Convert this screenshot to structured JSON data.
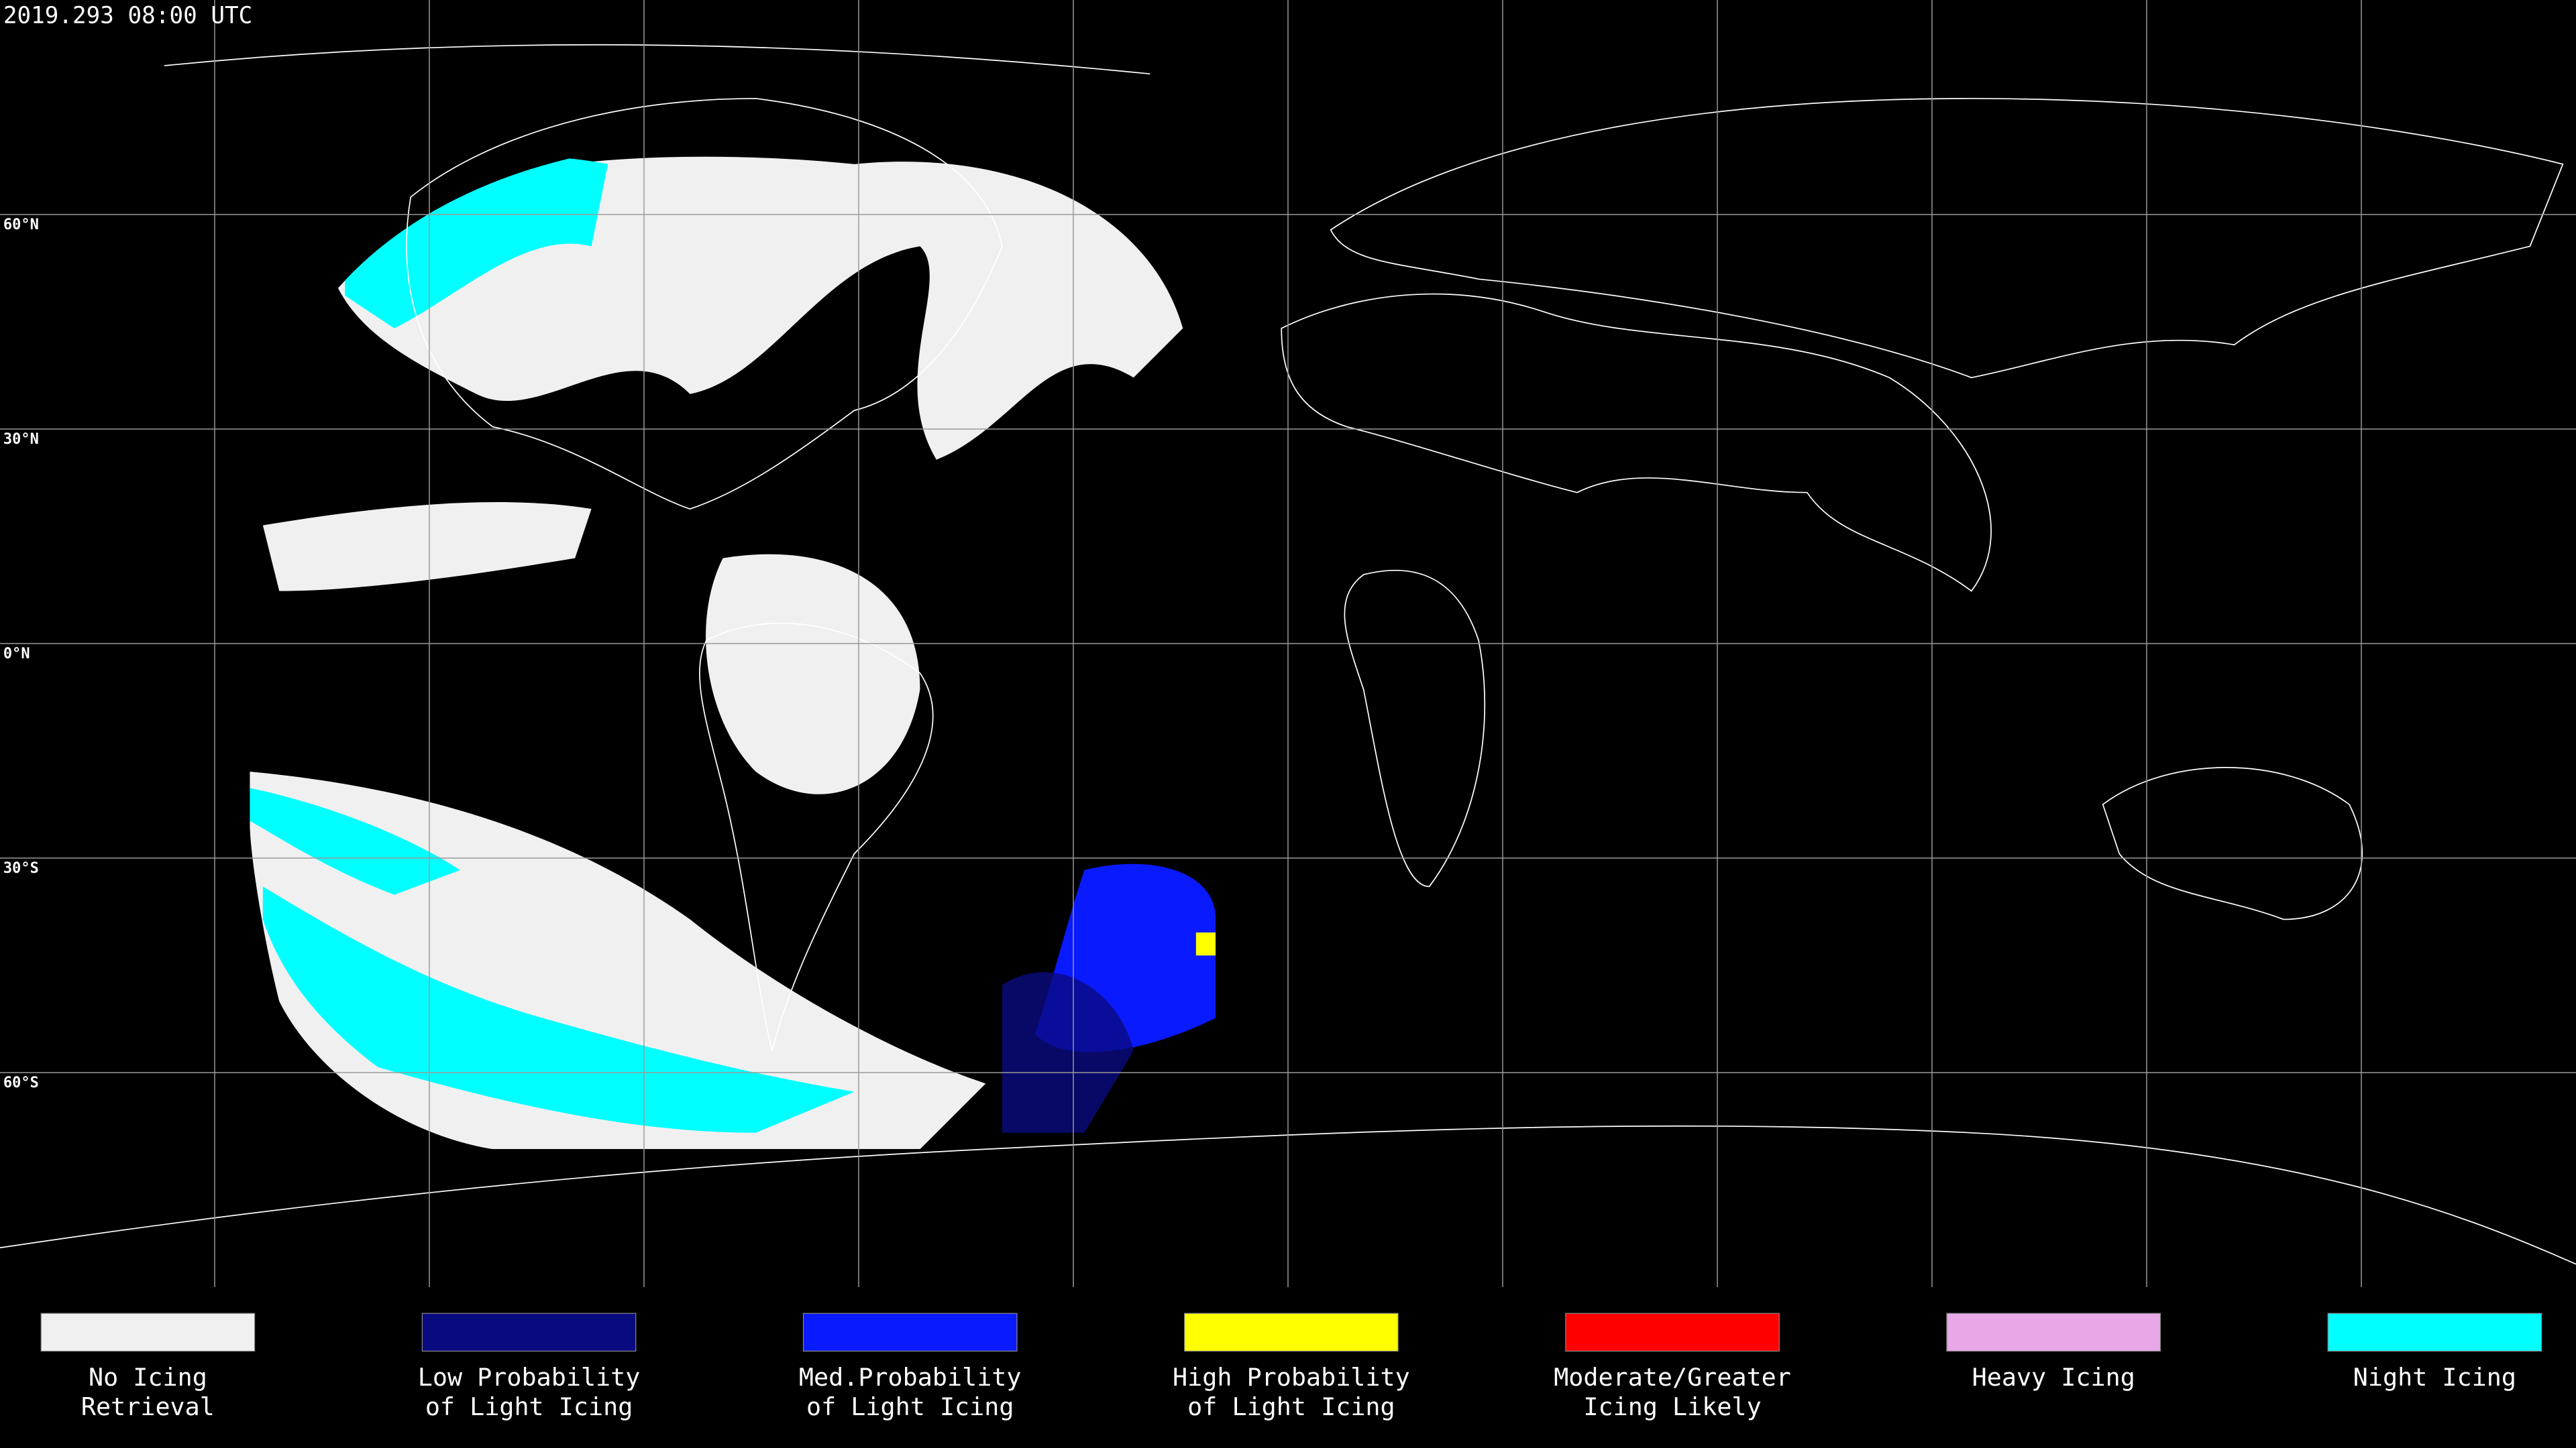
{
  "timestamp": "2019.293 08:00 UTC",
  "latitude_labels": [
    "60°N",
    "30°N",
    "0°N",
    "30°S",
    "60°S"
  ],
  "legend": [
    {
      "lines": [
        "No Icing",
        "Retrieval"
      ],
      "color": "#f0f0f0"
    },
    {
      "lines": [
        "Low Probability",
        "of Light Icing"
      ],
      "color": "#0a0a80"
    },
    {
      "lines": [
        "Med.Probability",
        "of Light Icing"
      ],
      "color": "#0a1aff"
    },
    {
      "lines": [
        "High Probability",
        "of Light Icing"
      ],
      "color": "#ffff00"
    },
    {
      "lines": [
        "Moderate/Greater",
        "Icing Likely"
      ],
      "color": "#ff0000"
    },
    {
      "lines": [
        "Heavy Icing"
      ],
      "color": "#e8a8e8"
    },
    {
      "lines": [
        "Night Icing"
      ],
      "color": "#00ffff"
    }
  ]
}
